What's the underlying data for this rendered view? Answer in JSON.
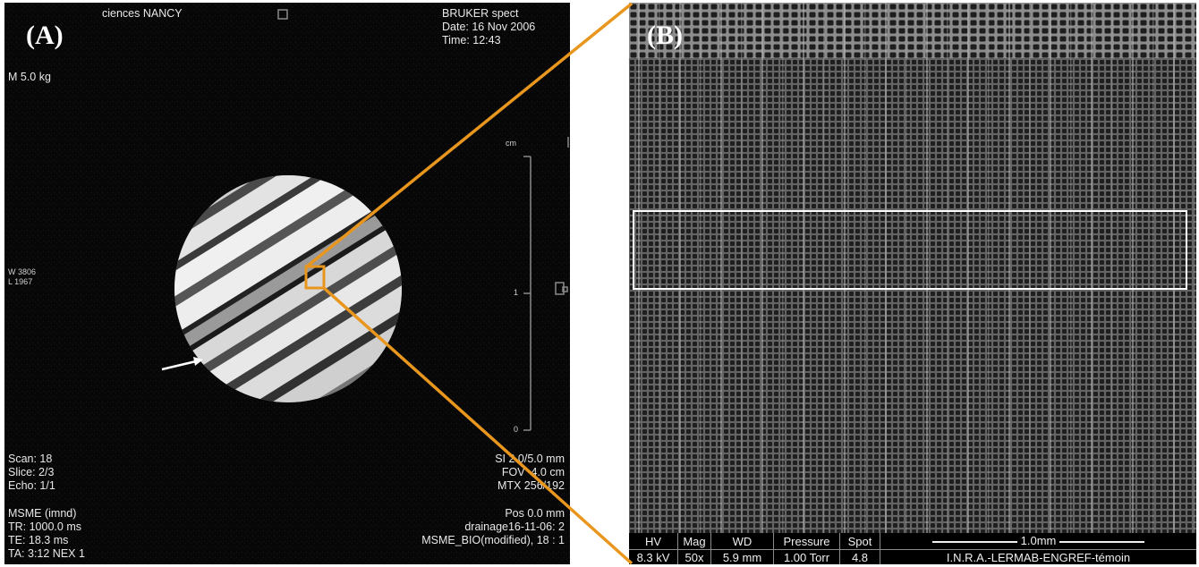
{
  "panel_a": {
    "label": "(A)",
    "header_left": "ciences NANCY",
    "header_right_line1": "BRUKER spect",
    "header_right_line2": "Date: 16 Nov 2006",
    "header_right_line3": "Time: 12:43",
    "mass": "M 5.0 kg",
    "window": "W 3806",
    "level": "L 1967",
    "scale_unit": "cm",
    "scale_tick_1": "1",
    "scale_tick_0": "0",
    "scan_lines": [
      "Scan: 18",
      "Slice: 2/3",
      "Echo: 1/1"
    ],
    "seq_lines": [
      "MSME (imnd)",
      "TR: 1000.0 ms",
      "TE: 18.3 ms",
      "TA: 3:12 NEX 1"
    ],
    "geom_lines": [
      "SI 2.0/5.0 mm",
      "FOV  4.0 cm",
      "MTX 256/192"
    ],
    "pos_lines": [
      "Pos 0.0 mm",
      "drainage16-11-06: 2",
      "MSME_BIO(modified), 18 : 1"
    ]
  },
  "panel_b": {
    "label": "(B)",
    "info_bar": {
      "hv_label": "HV",
      "hv_value": "8.3 kV",
      "mag_label": "Mag",
      "mag_value": "50x",
      "wd_label": "WD",
      "wd_value": "5.9 mm",
      "pressure_label": "Pressure",
      "pressure_value": "1.00  Torr",
      "spot_label": "Spot",
      "spot_value": "4.8",
      "scale_label": "1.0mm",
      "institution": "I.N.R.A.-LERMAB-ENGREF-témoin"
    }
  },
  "colors": {
    "zoom_lines": "#E8961E",
    "annotation": "#ffffff"
  }
}
